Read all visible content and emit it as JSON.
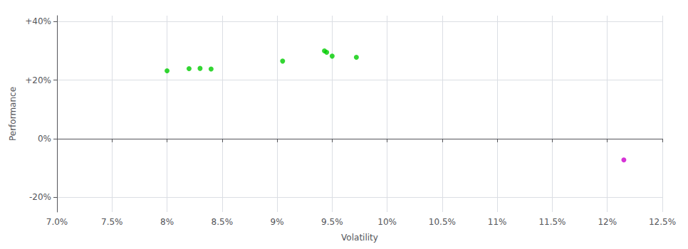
{
  "chart_data": {
    "type": "scatter",
    "xlabel": "Volatility",
    "ylabel": "Performance",
    "xlim": [
      0.07,
      0.125
    ],
    "ylim": [
      -0.25,
      0.42
    ],
    "xticks": [
      {
        "value": 0.07,
        "label": "7.0%"
      },
      {
        "value": 0.075,
        "label": "7.5%"
      },
      {
        "value": 0.08,
        "label": "8%"
      },
      {
        "value": 0.085,
        "label": "8.5%"
      },
      {
        "value": 0.09,
        "label": "9%"
      },
      {
        "value": 0.095,
        "label": "9.5%"
      },
      {
        "value": 0.1,
        "label": "10%"
      },
      {
        "value": 0.105,
        "label": "10.5%"
      },
      {
        "value": 0.11,
        "label": "11%"
      },
      {
        "value": 0.115,
        "label": "11.5%"
      },
      {
        "value": 0.12,
        "label": "12%"
      },
      {
        "value": 0.125,
        "label": "12.5%"
      }
    ],
    "yticks": [
      {
        "value": -0.2,
        "label": "-20%"
      },
      {
        "value": 0.0,
        "label": "0%"
      },
      {
        "value": 0.2,
        "label": "+20%"
      },
      {
        "value": 0.4,
        "label": "+40%"
      }
    ],
    "grid": true,
    "series": [
      {
        "color": "#00cc00",
        "x": [
          0.08,
          0.082,
          0.083,
          0.084,
          0.0905,
          0.0943,
          0.0945,
          0.095,
          0.0972
        ],
        "values": [
          0.232,
          0.239,
          0.24,
          0.238,
          0.265,
          0.3,
          0.295,
          0.282,
          0.278
        ]
      },
      {
        "color": "#cc00cc",
        "x": [
          0.1215
        ],
        "values": [
          -0.072
        ]
      }
    ]
  }
}
